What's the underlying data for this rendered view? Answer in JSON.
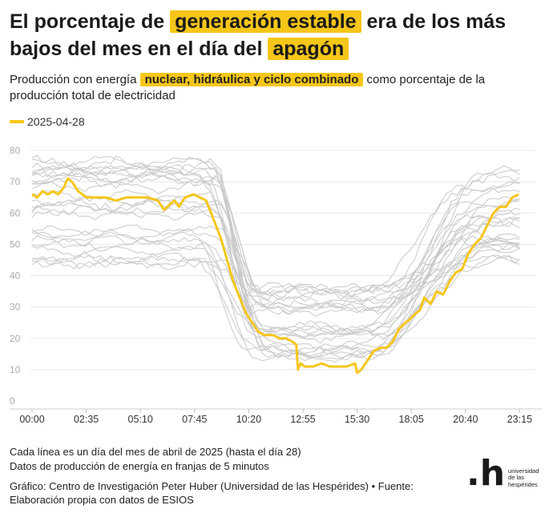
{
  "header": {
    "title_part1": "El porcentaje de ",
    "title_hl1": "generación estable",
    "title_part2": " era de los más bajos del mes en el día del ",
    "title_hl2": "apagón",
    "subtitle_part1": "Producción con energía ",
    "subtitle_hl": "nuclear, hidráulica y ciclo combinado",
    "subtitle_part2": " como porcentaje de la producción total de electricidad"
  },
  "legend": {
    "label": "2025-04-28"
  },
  "colors": {
    "highlight": "#f6c619",
    "grey_lines": "#c9c9c9",
    "grid": "#e8e8e8"
  },
  "chart_data": {
    "type": "line",
    "title": "Producción con energía nuclear, hidráulica y ciclo combinado como porcentaje de la producción total de electricidad",
    "xlabel": "",
    "ylabel": "",
    "ylim": [
      0,
      80
    ],
    "yticks": [
      "0",
      "10",
      "20",
      "30",
      "40",
      "50",
      "60",
      "70",
      "80"
    ],
    "xlim": [
      0,
      24
    ],
    "xticks": [
      {
        "h": 0,
        "label": "00:00"
      },
      {
        "h": 2.5833,
        "label": "02:35"
      },
      {
        "h": 5.1667,
        "label": "05:10"
      },
      {
        "h": 7.75,
        "label": "07:45"
      },
      {
        "h": 10.3333,
        "label": "10:20"
      },
      {
        "h": 12.9167,
        "label": "12:55"
      },
      {
        "h": 15.5,
        "label": "15:30"
      },
      {
        "h": 18.0833,
        "label": "18:05"
      },
      {
        "h": 20.6667,
        "label": "20:40"
      },
      {
        "h": 23.25,
        "label": "23:15"
      }
    ],
    "grid": true,
    "legend_position": "top-left",
    "highlight_series": {
      "name": "2025-04-28",
      "points": [
        [
          0,
          66
        ],
        [
          0.25,
          65
        ],
        [
          0.5,
          67
        ],
        [
          0.75,
          66
        ],
        [
          1.0,
          67
        ],
        [
          1.25,
          66
        ],
        [
          1.5,
          68
        ],
        [
          1.7,
          71
        ],
        [
          1.9,
          70
        ],
        [
          2.2,
          67
        ],
        [
          2.6,
          65
        ],
        [
          3.0,
          65
        ],
        [
          3.5,
          65
        ],
        [
          4.0,
          64
        ],
        [
          4.5,
          65
        ],
        [
          5.0,
          65
        ],
        [
          5.5,
          65
        ],
        [
          6.0,
          64
        ],
        [
          6.3,
          61
        ],
        [
          6.6,
          63
        ],
        [
          6.8,
          64
        ],
        [
          7.0,
          62
        ],
        [
          7.3,
          65
        ],
        [
          7.7,
          66
        ],
        [
          8.0,
          65
        ],
        [
          8.3,
          64
        ],
        [
          8.6,
          59
        ],
        [
          9.0,
          52
        ],
        [
          9.3,
          45
        ],
        [
          9.6,
          38
        ],
        [
          9.9,
          33
        ],
        [
          10.2,
          28
        ],
        [
          10.5,
          25
        ],
        [
          10.8,
          22
        ],
        [
          11.1,
          21
        ],
        [
          11.5,
          21
        ],
        [
          11.8,
          20
        ],
        [
          12.1,
          20
        ],
        [
          12.4,
          19
        ],
        [
          12.6,
          18
        ],
        [
          12.68,
          10
        ],
        [
          12.8,
          12
        ],
        [
          13.0,
          11
        ],
        [
          13.4,
          11
        ],
        [
          13.8,
          12
        ],
        [
          14.2,
          11
        ],
        [
          14.6,
          11
        ],
        [
          15.0,
          11
        ],
        [
          15.4,
          12
        ],
        [
          15.5,
          9
        ],
        [
          15.7,
          10
        ],
        [
          16.0,
          13
        ],
        [
          16.3,
          16
        ],
        [
          16.6,
          17
        ],
        [
          16.9,
          17
        ],
        [
          17.2,
          19
        ],
        [
          17.5,
          23
        ],
        [
          17.8,
          25
        ],
        [
          18.0,
          26
        ],
        [
          18.3,
          28
        ],
        [
          18.5,
          29
        ],
        [
          18.7,
          33
        ],
        [
          19.0,
          31
        ],
        [
          19.3,
          35
        ],
        [
          19.6,
          34
        ],
        [
          19.9,
          38
        ],
        [
          20.2,
          41
        ],
        [
          20.5,
          42
        ],
        [
          20.8,
          47
        ],
        [
          21.1,
          50
        ],
        [
          21.4,
          52
        ],
        [
          21.7,
          56
        ],
        [
          22.0,
          60
        ],
        [
          22.3,
          62
        ],
        [
          22.6,
          62
        ],
        [
          22.9,
          65
        ],
        [
          23.2,
          66
        ]
      ]
    },
    "background_series_count": 27,
    "background_series_note": "Cada línea es un día del mes de abril de 2025 (hasta el día 28)"
  },
  "footer": {
    "note1": "Cada línea es un día del mes de abril de 2025 (hasta el día 28)",
    "note2": "Datos de producción de energía en franjas de 5 minutos",
    "credit": "Gráfico: Centro de Investigación Peter Huber (Universidad de las Hespérides) • Fuente: Elaboración propia con datos de ESIOS"
  },
  "logo": {
    "mark": ".h",
    "line1": "universidad",
    "line2": "de las",
    "line3": "hespérides"
  }
}
